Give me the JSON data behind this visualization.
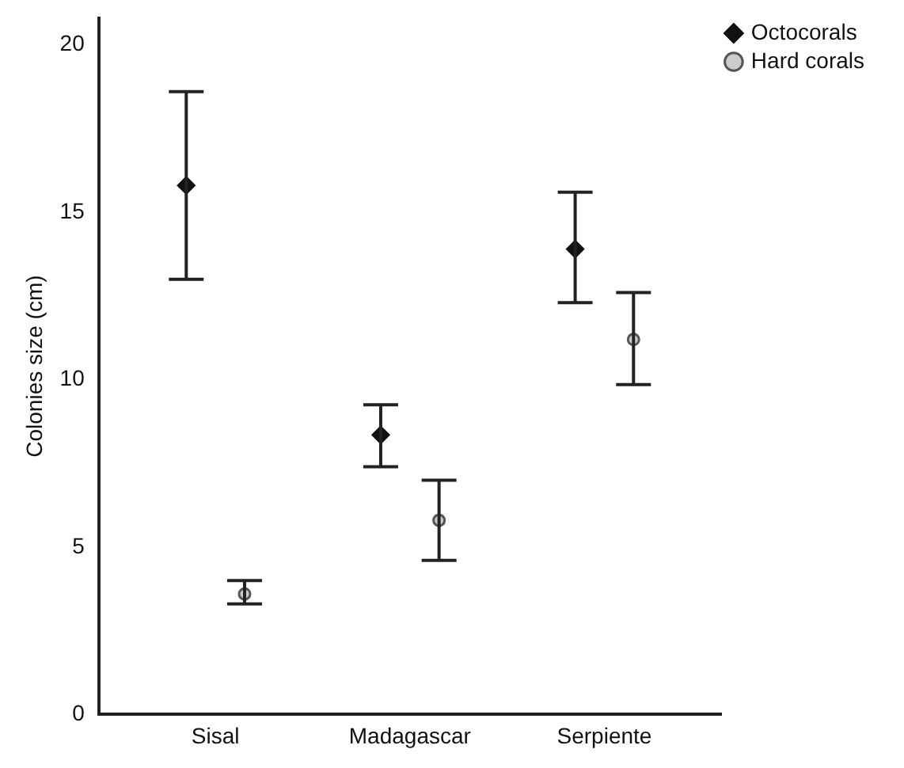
{
  "chart_data": {
    "type": "scatter",
    "ylabel": "Colonies size (cm)",
    "categories": [
      "Sisal",
      "Madagascar",
      "Serpiente"
    ],
    "ylim": [
      0,
      20.8
    ],
    "yticks": [
      0,
      5,
      10,
      15,
      20
    ],
    "grid": false,
    "legend": "top right",
    "series": [
      {
        "name": "Octocorals",
        "color": "#111111",
        "marker": "diamond",
        "values": [
          15.8,
          8.35,
          13.9
        ],
        "errors": [
          [
            13.0,
            18.6
          ],
          [
            7.4,
            9.25
          ],
          [
            12.3,
            15.6
          ]
        ]
      },
      {
        "name": "Hard corals",
        "color": "#555555",
        "marker": "circle",
        "values": [
          3.6,
          5.8,
          11.2
        ],
        "errors": [
          [
            3.3,
            4.0
          ],
          [
            4.6,
            7.0
          ],
          [
            9.85,
            12.6
          ]
        ]
      }
    ]
  }
}
